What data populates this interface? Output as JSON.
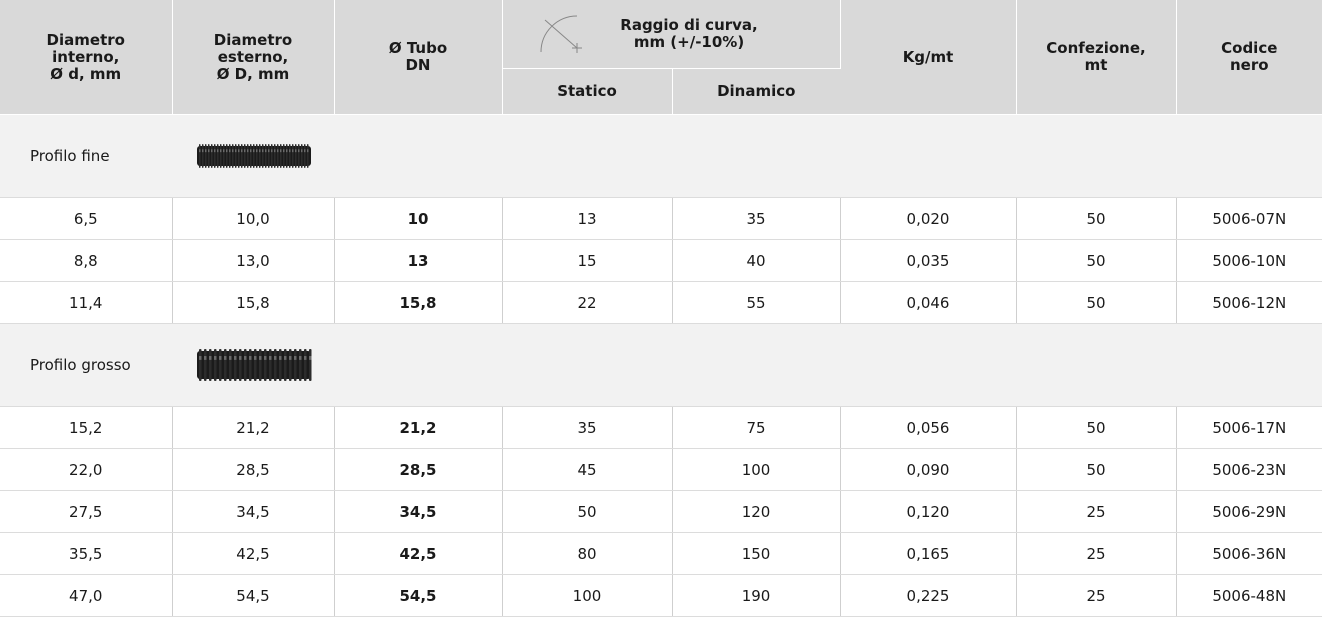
{
  "header": {
    "col_d_int": [
      "Diametro",
      "interno,",
      "Ø d, mm"
    ],
    "col_d_ext": [
      "Diametro",
      "esterno,",
      "Ø D, mm"
    ],
    "col_dn": [
      "Ø Tubo",
      "DN"
    ],
    "col_raggio": [
      "Raggio di curva,",
      "mm (+/-10%)"
    ],
    "col_statico": "Statico",
    "col_dinamico": "Dinamico",
    "col_kg": "Kg/mt",
    "col_confezione": [
      "Confezione,",
      "mt"
    ],
    "col_codice": [
      "Codice",
      "nero"
    ]
  },
  "sections": [
    {
      "label": "Profilo fine",
      "image": "corrugated-tube-fine",
      "rows": [
        {
          "d_int": "6,5",
          "d_ext": "10,0",
          "dn": "10",
          "statico": "13",
          "dinamico": "35",
          "kg": "0,020",
          "confezione": "50",
          "codice": "5006-07N"
        },
        {
          "d_int": "8,8",
          "d_ext": "13,0",
          "dn": "13",
          "statico": "15",
          "dinamico": "40",
          "kg": "0,035",
          "confezione": "50",
          "codice": "5006-10N"
        },
        {
          "d_int": "11,4",
          "d_ext": "15,8",
          "dn": "15,8",
          "statico": "22",
          "dinamico": "55",
          "kg": "0,046",
          "confezione": "50",
          "codice": "5006-12N"
        }
      ]
    },
    {
      "label": "Profilo grosso",
      "image": "corrugated-tube-coarse",
      "rows": [
        {
          "d_int": "15,2",
          "d_ext": "21,2",
          "dn": "21,2",
          "statico": "35",
          "dinamico": "75",
          "kg": "0,056",
          "confezione": "50",
          "codice": "5006-17N"
        },
        {
          "d_int": "22,0",
          "d_ext": "28,5",
          "dn": "28,5",
          "statico": "45",
          "dinamico": "100",
          "kg": "0,090",
          "confezione": "50",
          "codice": "5006-23N"
        },
        {
          "d_int": "27,5",
          "d_ext": "34,5",
          "dn": "34,5",
          "statico": "50",
          "dinamico": "120",
          "kg": "0,120",
          "confezione": "25",
          "codice": "5006-29N"
        },
        {
          "d_int": "35,5",
          "d_ext": "42,5",
          "dn": "42,5",
          "statico": "80",
          "dinamico": "150",
          "kg": "0,165",
          "confezione": "25",
          "codice": "5006-36N"
        },
        {
          "d_int": "47,0",
          "d_ext": "54,5",
          "dn": "54,5",
          "statico": "100",
          "dinamico": "190",
          "kg": "0,225",
          "confezione": "25",
          "codice": "5006-48N"
        }
      ]
    }
  ],
  "colors": {
    "header_bg": "#d9d9d9",
    "section_bg": "#f2f2f2",
    "tube": "#1b1b1b"
  }
}
